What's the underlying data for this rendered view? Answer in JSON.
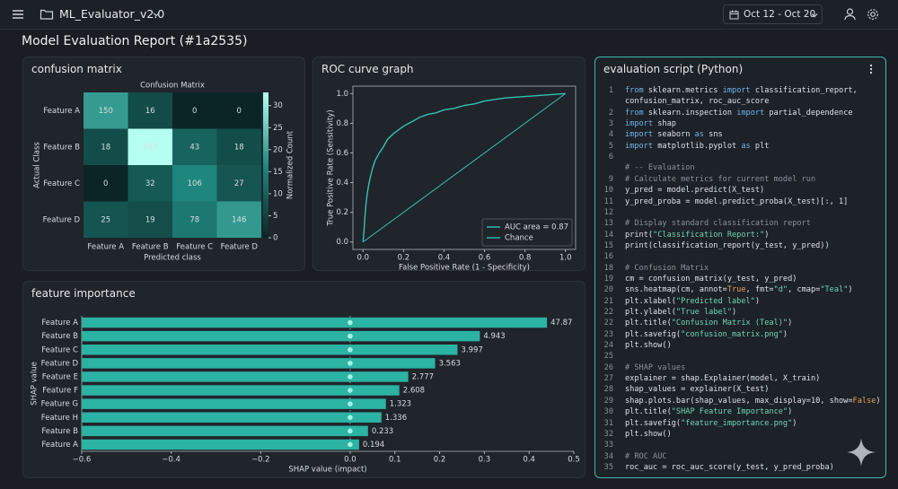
{
  "header": {
    "app_name": "ML_Evaluator_v2.0",
    "date_range": "Oct 12 - Oct 20"
  },
  "report_title": "Model Evaluation Report (#1a2535)",
  "panels": {
    "confusion": "confusion matrix",
    "roc": "ROC curve graph",
    "features": "feature importance",
    "script": "evaluation script (Python)"
  },
  "chart_data": [
    {
      "type": "heatmap",
      "title": "Confusion Matrix",
      "x_categories": [
        "Feature A",
        "Feature B",
        "Feature C",
        "Feature D"
      ],
      "y_categories": [
        "Feature A",
        "Feature B",
        "Feature C",
        "Feature D"
      ],
      "values": [
        [
          150,
          16,
          0,
          0
        ],
        [
          18,
          457,
          43,
          18
        ],
        [
          0,
          32,
          106,
          27
        ],
        [
          25,
          19,
          78,
          146
        ]
      ],
      "xlabel": "Predicted class",
      "ylabel": "Actual Class",
      "colorbar_label": "Normalized Count",
      "clim": [
        0,
        33
      ],
      "cticks": [
        0,
        5,
        10,
        15,
        20,
        25,
        30
      ],
      "colors": [
        "#0b2527",
        "#1f8a80",
        "#b5fff2"
      ]
    },
    {
      "type": "line",
      "xlabel": "False Positive Rate (1 - Specificity)",
      "ylabel": "True Positive Rate (Sensitivity)",
      "xlim": [
        -0.05,
        1.05
      ],
      "ylim": [
        -0.05,
        1.05
      ],
      "xticks": [
        {
          "value": 0,
          "label": "0.0"
        },
        {
          "value": 0.2,
          "label": "0.2"
        },
        {
          "value": 0.4,
          "label": "0.4"
        },
        {
          "value": 0.6,
          "label": "0.6"
        },
        {
          "value": 0.8,
          "label": "0.8"
        },
        {
          "value": 1,
          "label": "1.0"
        }
      ],
      "yticks": [
        {
          "value": 0,
          "label": "0.0"
        },
        {
          "value": 0.2,
          "label": "0.2"
        },
        {
          "value": 0.4,
          "label": "0.4"
        },
        {
          "value": 0.6,
          "label": "0.6"
        },
        {
          "value": 0.8,
          "label": "0.8"
        },
        {
          "value": 1,
          "label": "1.0"
        }
      ],
      "legend": "lower right",
      "series": [
        {
          "name": "AUC area = 0.87",
          "color": "#35c2b0",
          "x": [
            0,
            0.005,
            0.01,
            0.015,
            0.02,
            0.03,
            0.04,
            0.05,
            0.06,
            0.08,
            0.1,
            0.12,
            0.15,
            0.18,
            0.2,
            0.24,
            0.28,
            0.32,
            0.36,
            0.4,
            0.45,
            0.5,
            0.55,
            0.6,
            0.7,
            0.8,
            0.9,
            1
          ],
          "values": [
            0,
            0.08,
            0.18,
            0.26,
            0.32,
            0.4,
            0.46,
            0.51,
            0.55,
            0.6,
            0.64,
            0.69,
            0.73,
            0.76,
            0.78,
            0.81,
            0.84,
            0.86,
            0.87,
            0.89,
            0.9,
            0.92,
            0.93,
            0.95,
            0.97,
            0.98,
            0.99,
            1
          ]
        },
        {
          "name": "Chance",
          "color": "#35c2b0",
          "x": [
            0,
            1
          ],
          "values": [
            0,
            1
          ]
        }
      ]
    },
    {
      "type": "barh",
      "xlabel": "SHAP value (impact)",
      "ylabel": "SHAP value",
      "color": "#2bb3a3",
      "categories": [
        "Feature A",
        "Feature B",
        "Feature C",
        "Feature D",
        "Feature E",
        "Feature F",
        "Feature G",
        "Feature H",
        "Feature B",
        "Feature A"
      ],
      "values": [
        0.44,
        0.29,
        0.24,
        0.19,
        0.13,
        0.11,
        0.08,
        0.07,
        0.04,
        0.02
      ],
      "annotations": [
        "47.87",
        "4.943",
        "3.997",
        "3.563",
        "2.777",
        "2.608",
        "1.323",
        "1.336",
        "0.233",
        "0.194"
      ],
      "xlim": [
        -0.6,
        0.5
      ],
      "xticks": [
        {
          "value": -0.6,
          "label": "−0.6"
        },
        {
          "value": -0.4,
          "label": "−0.4"
        },
        {
          "value": -0.2,
          "label": "−0.2"
        },
        {
          "value": 0,
          "label": "0.0"
        },
        0.1,
        0.2,
        0.3,
        0.4,
        0.5
      ]
    }
  ],
  "script": {
    "lines": [
      {
        "number": "1",
        "code": "from sklearn.metrics import classification_report,"
      },
      {
        "number": null,
        "code": "confusion_matrix, roc_auc_score"
      },
      {
        "number": "2",
        "code": "from sklearn.inspection import partial_dependence"
      },
      {
        "number": "3",
        "code": "import shap"
      },
      {
        "number": "4",
        "code": "import seaborn as sns"
      },
      {
        "number": "5",
        "code": "import matplotlib.pyplot as plt"
      },
      {
        "number": "6",
        "code": null
      },
      {
        "number": null,
        "code": "# -- Evaluation"
      },
      {
        "number": "9",
        "code": "# Calculate metrics for current model run"
      },
      {
        "number": "10",
        "code": "y_pred = model.predict(X_test)"
      },
      {
        "number": "11",
        "code": "y_pred_proba = model.predict_proba(X_test)[:, 1]"
      },
      {
        "number": "12",
        "code": null
      },
      {
        "number": "13",
        "code": "# Display standard classification report"
      },
      {
        "number": "14",
        "code": "print(\"Classification Report:\")"
      },
      {
        "number": "15",
        "code": "print(classification_report(y_test, y_pred))"
      },
      {
        "number": "16",
        "code": null
      },
      {
        "number": "18",
        "code": "# Confusion Matrix"
      },
      {
        "number": "19",
        "code": "cm = confusion_matrix(y_test, y_pred)"
      },
      {
        "number": "20",
        "code": "sns.heatmap(cm, annot=True, fmt=\"d\", cmap=\"Teal\")"
      },
      {
        "number": "21",
        "code": "plt.xlabel(\"Predicted label\")"
      },
      {
        "number": "22",
        "code": "plt.ylabel(\"True label\")"
      },
      {
        "number": "22",
        "code": "plt.title(\"Confusion Matrix (Teal)\")"
      },
      {
        "number": "23",
        "code": "plt.savefig(\"confusion_matrix.png\")"
      },
      {
        "number": "24",
        "code": "plt.show()"
      },
      {
        "number": "25",
        "code": null
      },
      {
        "number": "26",
        "code": "# SHAP values"
      },
      {
        "number": "27",
        "code": "explainer = shap.Explainer(model, X_train)"
      },
      {
        "number": "28",
        "code": "shap_values = explainer(X_test)"
      },
      {
        "number": "29",
        "code": "shap.plots.bar(shap_values, max_display=10, show=False)"
      },
      {
        "number": "30",
        "code": "plt.title(\"SHAP Feature Importance\")"
      },
      {
        "number": "31",
        "code": "plt.savefig(\"feature_importance.png\")"
      },
      {
        "number": "32",
        "code": "plt.show()"
      },
      {
        "number": "33",
        "code": null
      },
      {
        "number": "34",
        "code": "# ROC AUC"
      },
      {
        "number": "35",
        "code": "roc_auc = roc_auc_score(y_test, y_pred_proba)"
      }
    ]
  }
}
